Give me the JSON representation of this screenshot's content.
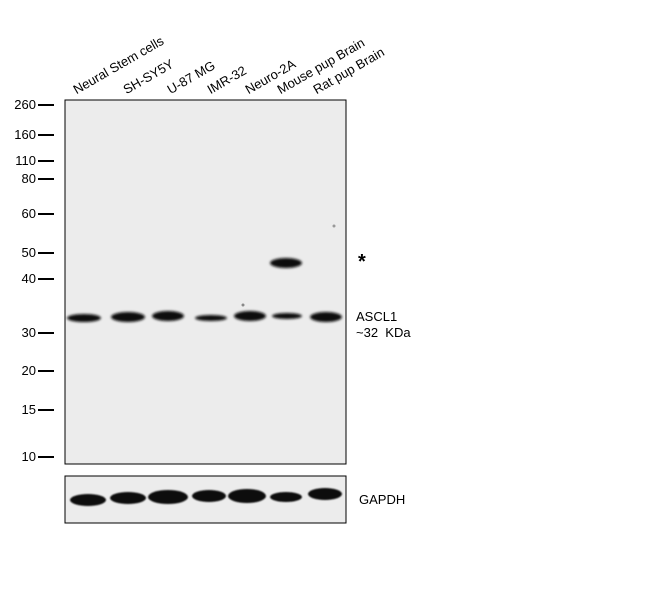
{
  "lanes": [
    "Neural Stem cells",
    "SH-SY5Y",
    "U-87 MG",
    "IMR-32",
    "Neuro-2A",
    "Mouse pup Brain",
    "Rat pup Brain"
  ],
  "markers": [
    "260",
    "160",
    "110",
    "80",
    "60",
    "50",
    "40",
    "30",
    "20",
    "15",
    "10"
  ],
  "target": {
    "name": "ASCL1",
    "size": "~32  KDa"
  },
  "nonspecific_mark": "*",
  "loading_control": "GAPDH"
}
